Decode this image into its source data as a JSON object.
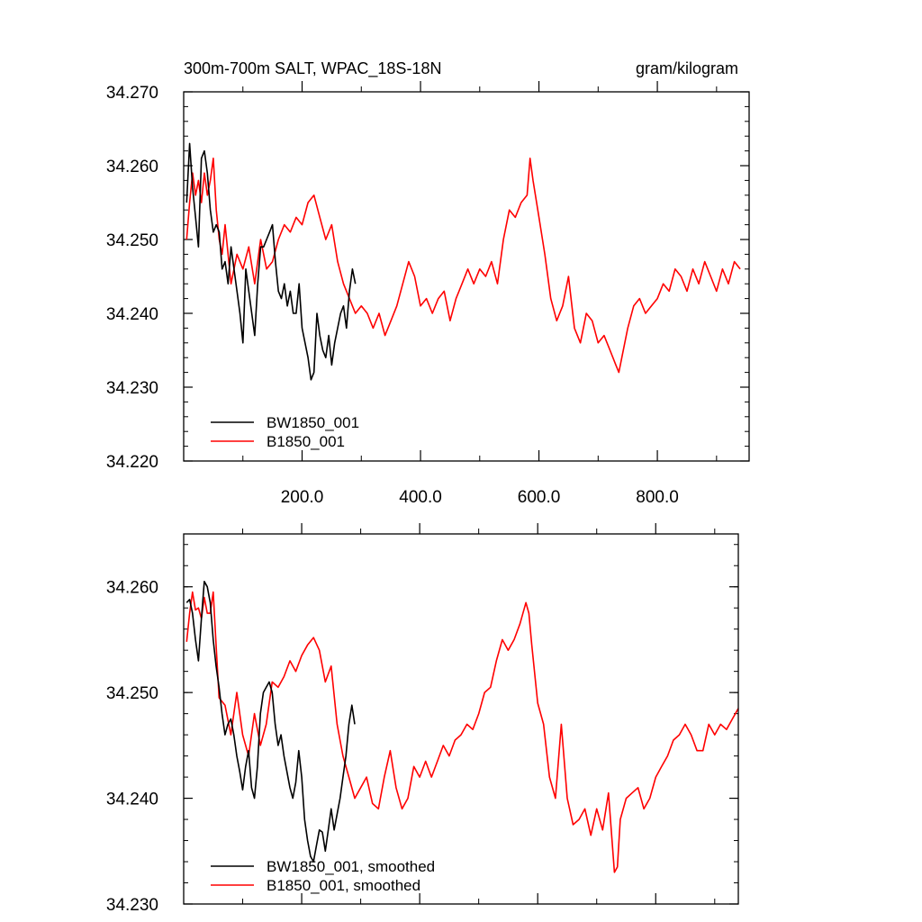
{
  "chart_data": [
    {
      "type": "line",
      "title_left": "300m-700m SALT, WPAC_18S-18N",
      "title_right": "gram/kilogram",
      "xlim": [
        0,
        955
      ],
      "ylim": [
        34.22,
        34.27
      ],
      "x_ticks": [
        200,
        400,
        600,
        800
      ],
      "x_tick_labels": [
        "200.0",
        "400.0",
        "600.0",
        "800.0"
      ],
      "y_ticks": [
        34.22,
        34.23,
        34.24,
        34.25,
        34.26,
        34.27
      ],
      "y_tick_labels": [
        "34.220",
        "34.230",
        "34.240",
        "34.250",
        "34.260",
        "34.270"
      ],
      "legend_position": "bottom-left",
      "series": [
        {
          "name": "BW1850_001",
          "color": "#000000",
          "x": [
            5,
            10,
            15,
            20,
            25,
            30,
            35,
            40,
            45,
            50,
            55,
            60,
            65,
            70,
            75,
            80,
            85,
            90,
            95,
            100,
            105,
            110,
            115,
            120,
            125,
            130,
            135,
            140,
            145,
            150,
            155,
            160,
            165,
            170,
            175,
            180,
            185,
            190,
            195,
            200,
            205,
            210,
            215,
            220,
            225,
            230,
            235,
            240,
            245,
            250,
            255,
            260,
            265,
            270,
            275,
            280,
            285,
            290
          ],
          "y": [
            34.255,
            34.263,
            34.257,
            34.253,
            34.249,
            34.261,
            34.262,
            34.259,
            34.254,
            34.251,
            34.252,
            34.251,
            34.246,
            34.247,
            34.244,
            34.249,
            34.246,
            34.243,
            34.24,
            34.236,
            34.246,
            34.243,
            34.24,
            34.237,
            34.244,
            34.249,
            34.249,
            34.25,
            34.251,
            34.252,
            34.247,
            34.243,
            34.242,
            34.244,
            34.241,
            34.243,
            34.24,
            34.24,
            34.244,
            34.238,
            34.236,
            34.234,
            34.231,
            34.232,
            34.24,
            34.237,
            34.235,
            34.234,
            34.237,
            34.233,
            34.236,
            34.238,
            34.24,
            34.241,
            34.238,
            34.243,
            34.246,
            34.244
          ]
        },
        {
          "name": "B1850_001",
          "color": "#ff0000",
          "x": [
            5,
            10,
            15,
            20,
            25,
            30,
            35,
            40,
            45,
            50,
            55,
            60,
            65,
            70,
            80,
            90,
            100,
            110,
            120,
            130,
            140,
            150,
            160,
            170,
            180,
            190,
            200,
            210,
            220,
            230,
            240,
            250,
            260,
            270,
            280,
            290,
            300,
            310,
            320,
            330,
            340,
            350,
            360,
            370,
            380,
            390,
            400,
            410,
            420,
            430,
            440,
            450,
            460,
            470,
            480,
            490,
            500,
            510,
            520,
            530,
            540,
            550,
            560,
            570,
            580,
            585,
            590,
            600,
            610,
            620,
            630,
            640,
            650,
            660,
            670,
            680,
            690,
            700,
            710,
            720,
            730,
            735,
            740,
            750,
            760,
            770,
            780,
            790,
            800,
            810,
            820,
            830,
            840,
            850,
            860,
            870,
            880,
            890,
            900,
            910,
            920,
            930,
            940
          ],
          "y": [
            34.25,
            34.255,
            34.259,
            34.256,
            34.258,
            34.255,
            34.259,
            34.256,
            34.258,
            34.261,
            34.254,
            34.25,
            34.248,
            34.252,
            34.244,
            34.248,
            34.246,
            34.249,
            34.244,
            34.25,
            34.246,
            34.247,
            34.25,
            34.252,
            34.251,
            34.253,
            34.252,
            34.255,
            34.256,
            34.253,
            34.25,
            34.252,
            34.247,
            34.244,
            34.242,
            34.24,
            34.241,
            34.24,
            34.238,
            34.24,
            34.237,
            34.239,
            34.241,
            34.244,
            34.247,
            34.245,
            34.241,
            34.242,
            34.24,
            34.242,
            34.243,
            34.239,
            34.242,
            34.244,
            34.246,
            34.244,
            34.246,
            34.245,
            34.247,
            34.244,
            34.25,
            34.254,
            34.253,
            34.255,
            34.256,
            34.261,
            34.258,
            34.253,
            34.248,
            34.242,
            34.239,
            34.241,
            34.245,
            34.238,
            34.236,
            34.24,
            34.239,
            34.236,
            34.237,
            34.235,
            34.233,
            34.232,
            34.234,
            34.238,
            34.241,
            34.242,
            34.24,
            34.241,
            34.242,
            34.244,
            34.243,
            34.246,
            34.245,
            34.243,
            34.246,
            34.244,
            34.247,
            34.245,
            34.243,
            34.246,
            34.244,
            34.247,
            34.246
          ]
        }
      ]
    },
    {
      "type": "line",
      "xlim": [
        0,
        955
      ],
      "ylim": [
        34.23,
        34.265
      ],
      "y_ticks": [
        34.23,
        34.24,
        34.25,
        34.26
      ],
      "y_tick_labels": [
        "34.230",
        "34.240",
        "34.250",
        "34.260"
      ],
      "legend_position": "bottom-left",
      "series": [
        {
          "name": "BW1850_001, smoothed",
          "color": "#000000",
          "x": [
            5,
            10,
            15,
            20,
            25,
            30,
            35,
            40,
            45,
            50,
            55,
            60,
            65,
            70,
            75,
            80,
            85,
            90,
            95,
            100,
            105,
            110,
            115,
            120,
            125,
            130,
            135,
            140,
            145,
            150,
            155,
            160,
            165,
            170,
            175,
            180,
            185,
            190,
            195,
            200,
            205,
            210,
            215,
            220,
            225,
            230,
            235,
            240,
            245,
            250,
            255,
            260,
            265,
            270,
            275,
            280,
            285,
            290
          ],
          "y": [
            34.2585,
            34.2588,
            34.2575,
            34.255,
            34.253,
            34.257,
            34.2605,
            34.26,
            34.2585,
            34.255,
            34.2525,
            34.2505,
            34.248,
            34.246,
            34.247,
            34.2475,
            34.246,
            34.244,
            34.2425,
            34.2408,
            34.243,
            34.2445,
            34.241,
            34.24,
            34.243,
            34.248,
            34.25,
            34.2505,
            34.251,
            34.25,
            34.247,
            34.245,
            34.246,
            34.244,
            34.2425,
            34.241,
            34.24,
            34.2415,
            34.2445,
            34.242,
            34.238,
            34.236,
            34.2345,
            34.234,
            34.2355,
            34.237,
            34.2368,
            34.235,
            34.237,
            34.239,
            34.237,
            34.2385,
            34.24,
            34.242,
            34.244,
            34.247,
            34.2488,
            34.247
          ]
        },
        {
          "name": "B1850_001, smoothed",
          "color": "#ff0000",
          "x": [
            5,
            10,
            15,
            20,
            25,
            30,
            35,
            40,
            45,
            50,
            55,
            60,
            70,
            80,
            90,
            100,
            110,
            120,
            130,
            140,
            150,
            160,
            170,
            180,
            190,
            200,
            210,
            220,
            230,
            240,
            250,
            260,
            270,
            280,
            290,
            300,
            310,
            320,
            330,
            340,
            350,
            360,
            370,
            380,
            390,
            400,
            410,
            420,
            430,
            440,
            450,
            460,
            470,
            480,
            490,
            500,
            510,
            520,
            530,
            540,
            550,
            560,
            570,
            580,
            585,
            590,
            600,
            610,
            620,
            630,
            640,
            650,
            660,
            670,
            680,
            690,
            700,
            710,
            720,
            730,
            735,
            740,
            750,
            760,
            770,
            780,
            790,
            800,
            810,
            820,
            830,
            840,
            850,
            860,
            870,
            880,
            890,
            900,
            910,
            920,
            930,
            940
          ],
          "y": [
            34.2548,
            34.2575,
            34.2595,
            34.2578,
            34.258,
            34.257,
            34.259,
            34.2575,
            34.2575,
            34.2595,
            34.2545,
            34.2495,
            34.2488,
            34.246,
            34.25,
            34.246,
            34.244,
            34.248,
            34.245,
            34.247,
            34.251,
            34.2505,
            34.2515,
            34.253,
            34.252,
            34.2535,
            34.2545,
            34.2552,
            34.254,
            34.251,
            34.2525,
            34.247,
            34.244,
            34.242,
            34.24,
            34.241,
            34.242,
            34.2395,
            34.239,
            34.242,
            34.2445,
            34.241,
            34.239,
            34.24,
            34.243,
            34.242,
            34.2435,
            34.242,
            34.2435,
            34.245,
            34.244,
            34.2455,
            34.246,
            34.247,
            34.2465,
            34.248,
            34.25,
            34.2505,
            34.253,
            34.255,
            34.254,
            34.255,
            34.2565,
            34.2585,
            34.2575,
            34.2545,
            34.249,
            34.247,
            34.242,
            34.24,
            34.247,
            34.24,
            34.2375,
            34.238,
            34.239,
            34.2365,
            34.239,
            34.237,
            34.2405,
            34.233,
            34.2335,
            34.238,
            34.24,
            34.2405,
            34.241,
            34.239,
            34.24,
            34.242,
            34.243,
            34.244,
            34.2455,
            34.246,
            34.247,
            34.246,
            34.2445,
            34.2445,
            34.247,
            34.246,
            34.247,
            34.2465,
            34.2475,
            34.2485
          ]
        }
      ]
    }
  ]
}
